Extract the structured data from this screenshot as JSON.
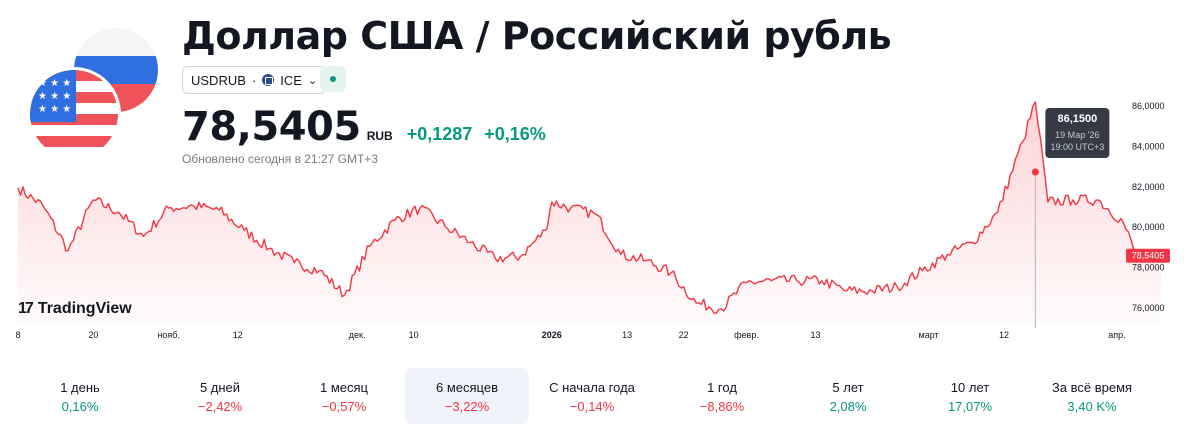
{
  "header": {
    "title": "Доллар США / Российский рубль",
    "symbol": "USDRUB",
    "separator": "·",
    "exchange": "ICE",
    "price": "78,5405",
    "currency": "RUB",
    "change_abs": "+0,1287",
    "change_pct": "+0,16%",
    "updated": "Обновлено сегодня в 21:27 GMT+3"
  },
  "colors": {
    "line": "#f23645",
    "positive": "#089981",
    "negative": "#f23645",
    "tooltip_bg": "#363a45"
  },
  "brand": {
    "logo_text": "TradingView"
  },
  "tooltip": {
    "value": "86,1500",
    "date": "19 Мар '26",
    "time": "19:00 UTC+3"
  },
  "chart_data": {
    "type": "area",
    "ylim": [
      75.2,
      86.8
    ],
    "y_ticks": [
      "86,0000",
      "84,0000",
      "82,0000",
      "80,0000",
      "78,0000",
      "76,0000"
    ],
    "x_ticks": [
      "8",
      "20",
      "нояб.",
      "12",
      "дек.",
      "10",
      "2026",
      "13",
      "22",
      "февр.",
      "13",
      "март",
      "12",
      "апр."
    ],
    "last_price_label": "78,5405",
    "series": [
      {
        "x": [
          "2025-10-08",
          "2025-10-12",
          "2025-10-16",
          "2025-10-20",
          "2025-10-24",
          "2025-10-28",
          "2025-11-01",
          "2025-11-05",
          "2025-11-09",
          "2025-11-13",
          "2025-11-17",
          "2025-11-21",
          "2025-11-25",
          "2025-11-29",
          "2025-12-03",
          "2025-12-07",
          "2025-12-11",
          "2025-12-15",
          "2025-12-19",
          "2025-12-23",
          "2025-12-27",
          "2025-12-31",
          "2026-01-01",
          "2026-01-04",
          "2026-01-08",
          "2026-01-12",
          "2026-01-16",
          "2026-01-20",
          "2026-01-24",
          "2026-01-28",
          "2026-02-01",
          "2026-02-05",
          "2026-02-09",
          "2026-02-13",
          "2026-02-17",
          "2026-02-21",
          "2026-02-25",
          "2026-03-01",
          "2026-03-05",
          "2026-03-09",
          "2026-03-13",
          "2026-03-17",
          "2026-03-19",
          "2026-03-21",
          "2026-03-25",
          "2026-03-29",
          "2026-04-02",
          "2026-04-04",
          "2026-04-08"
        ],
        "values": [
          81.9,
          81.0,
          78.8,
          81.3,
          80.7,
          79.5,
          80.9,
          81.0,
          80.8,
          79.8,
          78.9,
          78.2,
          77.8,
          76.6,
          79.0,
          80.3,
          80.9,
          80.0,
          79.2,
          78.4,
          78.5,
          79.8,
          81.2,
          80.9,
          80.6,
          78.6,
          78.3,
          77.7,
          76.2,
          75.9,
          77.2,
          77.3,
          77.3,
          77.3,
          76.8,
          76.8,
          77.0,
          77.8,
          78.6,
          79.2,
          80.7,
          84.2,
          86.15,
          81.2,
          81.3,
          81.3,
          80.2,
          78.6,
          78.54
        ]
      }
    ]
  },
  "periods": [
    {
      "label": "1 день",
      "value": "0,16%",
      "sign": "pos"
    },
    {
      "label": "5 дней",
      "value": "−2,42%",
      "sign": "neg"
    },
    {
      "label": "1 месяц",
      "value": "−0,57%",
      "sign": "neg"
    },
    {
      "label": "6 месяцев",
      "value": "−3,22%",
      "sign": "neg",
      "active": true
    },
    {
      "label": "С начала года",
      "value": "−0,14%",
      "sign": "neg"
    },
    {
      "label": "1 год",
      "value": "−8,86%",
      "sign": "neg"
    },
    {
      "label": "5 лет",
      "value": "2,08%",
      "sign": "pos"
    },
    {
      "label": "10 лет",
      "value": "17,07%",
      "sign": "pos"
    },
    {
      "label": "За всё время",
      "value": "3,40 K%",
      "sign": "pos"
    }
  ]
}
